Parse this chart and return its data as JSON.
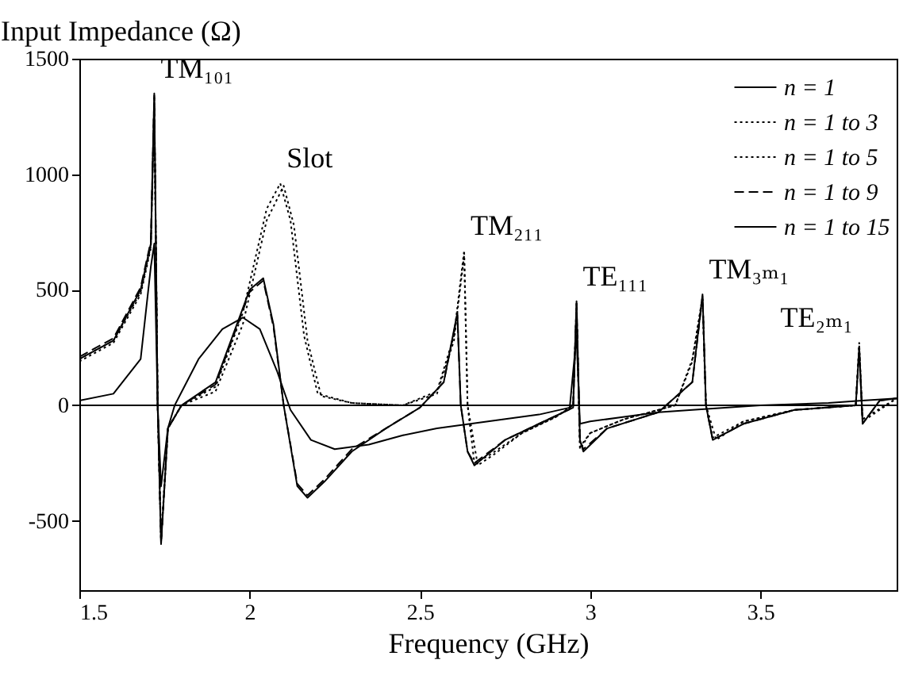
{
  "chart_data": {
    "type": "line",
    "xlabel": "Frequency (GHz)",
    "ylabel": "Input Impedance (Ω)",
    "xlim": [
      1.5,
      3.9
    ],
    "ylim": [
      -800,
      1500
    ],
    "xticks": [
      1.5,
      2,
      2.5,
      3,
      3.5
    ],
    "yticks": [
      -500,
      0,
      500,
      1000,
      1500
    ],
    "grid": false,
    "legend": "top right",
    "marker": "none",
    "ref_lines": [
      {
        "axis": "y",
        "value": 0,
        "label": null,
        "color": "#000000",
        "line_style": "solid"
      }
    ],
    "annotations": [
      {
        "text": "TM₁₀₁",
        "x": 1.72,
        "y": 1350
      },
      {
        "text": "Slot",
        "x": 2.09,
        "y": 960
      },
      {
        "text": "TM₂₁₁",
        "x": 2.63,
        "y": 670
      },
      {
        "text": "TE₁₁₁",
        "x": 2.96,
        "y": 450
      },
      {
        "text": "TM₃ₘ₁",
        "x": 3.33,
        "y": 480
      },
      {
        "text": "TE₂ₘ₁",
        "x": 3.79,
        "y": 270
      }
    ],
    "series": [
      {
        "name": "n = 1",
        "color": "#000000",
        "line_style": "solid",
        "x": [
          1.5,
          1.6,
          1.68,
          1.71,
          1.72,
          1.73,
          1.74,
          1.76,
          1.78,
          1.85,
          1.92,
          1.98,
          2.03,
          2.08,
          2.12,
          2.18,
          2.25,
          2.35,
          2.45,
          2.55,
          2.7,
          2.85,
          2.94,
          2.96,
          2.97,
          3.0,
          3.1,
          3.2,
          3.3,
          3.5,
          3.7,
          3.79,
          3.9
        ],
        "values": [
          20,
          50,
          200,
          600,
          700,
          0,
          -350,
          -100,
          0,
          200,
          330,
          380,
          330,
          150,
          -20,
          -150,
          -190,
          -170,
          -130,
          -100,
          -70,
          -40,
          -10,
          300,
          -80,
          -70,
          -50,
          -30,
          -20,
          0,
          10,
          20,
          30
        ]
      },
      {
        "name": "n = 1 to 3",
        "color": "#000000",
        "line_style": "dotted",
        "x": [
          1.5,
          1.6,
          1.68,
          1.71,
          1.72,
          1.73,
          1.74,
          1.76,
          1.8,
          1.9,
          1.98,
          2.05,
          2.09,
          2.12,
          2.16,
          2.2,
          2.3,
          2.45,
          2.55,
          2.6,
          2.63,
          2.64,
          2.66,
          2.7,
          2.8,
          2.9,
          2.95,
          2.96,
          2.97,
          3.0,
          3.1,
          3.25,
          3.3,
          3.33,
          3.34,
          3.36,
          3.45,
          3.6,
          3.78,
          3.79,
          3.8,
          3.9
        ],
        "values": [
          190,
          270,
          480,
          680,
          1300,
          0,
          -580,
          -100,
          0,
          80,
          400,
          850,
          960,
          800,
          300,
          50,
          10,
          0,
          60,
          300,
          670,
          0,
          -250,
          -220,
          -120,
          -50,
          0,
          420,
          -180,
          -120,
          -60,
          0,
          200,
          470,
          0,
          -140,
          -70,
          -20,
          0,
          270,
          -60,
          30
        ]
      },
      {
        "name": "n = 1 to 5",
        "color": "#000000",
        "line_style": "dotted",
        "x": [
          1.5,
          1.6,
          1.68,
          1.71,
          1.72,
          1.73,
          1.74,
          1.76,
          1.8,
          1.9,
          1.98,
          2.05,
          2.1,
          2.13,
          2.17,
          2.21,
          2.3,
          2.45,
          2.55,
          2.6,
          2.63,
          2.64,
          2.67,
          2.72,
          2.8,
          2.9,
          2.95,
          2.96,
          2.97,
          3.0,
          3.1,
          3.25,
          3.3,
          3.33,
          3.34,
          3.37,
          3.45,
          3.6,
          3.78,
          3.79,
          3.8,
          3.9
        ],
        "values": [
          200,
          280,
          490,
          690,
          1330,
          0,
          -590,
          -100,
          0,
          60,
          350,
          800,
          950,
          780,
          280,
          40,
          10,
          0,
          50,
          280,
          650,
          0,
          -260,
          -210,
          -120,
          -50,
          0,
          440,
          -190,
          -120,
          -60,
          0,
          190,
          460,
          0,
          -150,
          -70,
          -20,
          0,
          260,
          -70,
          30
        ]
      },
      {
        "name": "n = 1 to 9",
        "color": "#000000",
        "line_style": "dashed",
        "x": [
          1.5,
          1.6,
          1.68,
          1.71,
          1.72,
          1.73,
          1.74,
          1.76,
          1.8,
          1.9,
          1.95,
          2.0,
          2.04,
          2.07,
          2.1,
          2.14,
          2.17,
          2.22,
          2.3,
          2.4,
          2.5,
          2.57,
          2.61,
          2.62,
          2.64,
          2.66,
          2.75,
          2.85,
          2.95,
          2.96,
          2.97,
          2.98,
          3.05,
          3.2,
          3.3,
          3.33,
          3.34,
          3.36,
          3.45,
          3.6,
          3.78,
          3.79,
          3.8,
          3.85,
          3.9
        ],
        "values": [
          210,
          290,
          510,
          710,
          1340,
          0,
          -600,
          -100,
          0,
          90,
          290,
          490,
          540,
          340,
          0,
          -340,
          -390,
          -320,
          -190,
          -100,
          -10,
          100,
          390,
          0,
          -200,
          -250,
          -150,
          -80,
          -10,
          440,
          -150,
          -190,
          -100,
          -30,
          100,
          470,
          0,
          -150,
          -80,
          -20,
          0,
          240,
          -80,
          20,
          30
        ]
      },
      {
        "name": "n = 1 to 15",
        "color": "#000000",
        "line_style": "solid",
        "x": [
          1.5,
          1.6,
          1.68,
          1.71,
          1.72,
          1.73,
          1.74,
          1.76,
          1.8,
          1.9,
          1.95,
          2.0,
          2.04,
          2.07,
          2.1,
          2.14,
          2.17,
          2.22,
          2.3,
          2.4,
          2.5,
          2.57,
          2.61,
          2.62,
          2.64,
          2.66,
          2.75,
          2.85,
          2.95,
          2.96,
          2.97,
          2.98,
          3.05,
          3.2,
          3.3,
          3.33,
          3.34,
          3.36,
          3.45,
          3.6,
          3.78,
          3.79,
          3.8,
          3.85,
          3.9
        ],
        "values": [
          200,
          280,
          500,
          700,
          1350,
          0,
          -600,
          -100,
          0,
          100,
          300,
          500,
          550,
          350,
          0,
          -350,
          -400,
          -330,
          -200,
          -100,
          -10,
          100,
          400,
          0,
          -200,
          -260,
          -150,
          -80,
          -10,
          450,
          -150,
          -200,
          -100,
          -30,
          100,
          480,
          0,
          -150,
          -80,
          -20,
          0,
          250,
          -80,
          20,
          30
        ]
      }
    ]
  }
}
